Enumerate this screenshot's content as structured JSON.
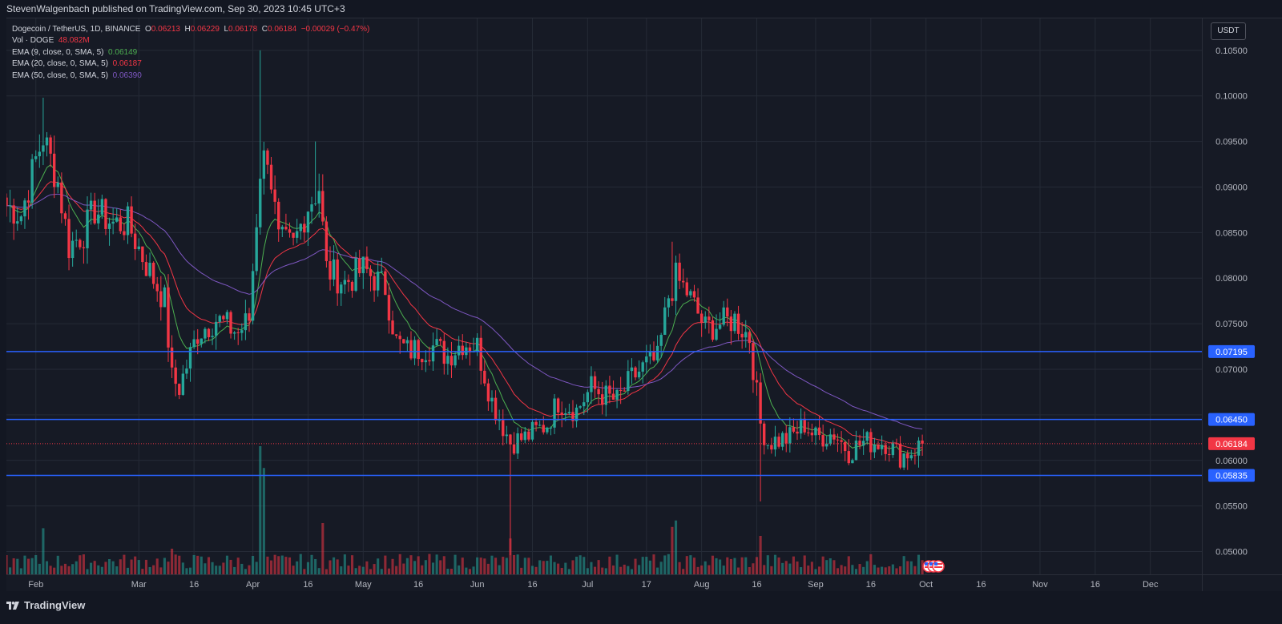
{
  "header": {
    "published_text": "StevenWalgenbach published on TradingView.com, Sep 30, 2023 10:45 UTC+3"
  },
  "legend": {
    "symbol": "Dogecoin / TetherUS, 1D, BINANCE",
    "ohlc": {
      "o_label": "O",
      "o_value": "0.06213",
      "h_label": "H",
      "h_value": "0.06229",
      "l_label": "L",
      "l_value": "0.06178",
      "c_label": "C",
      "c_value": "0.06184",
      "change": "−0.00029 (−0.47%)"
    },
    "volume": {
      "label": "Vol · DOGE",
      "value": "48.082M"
    },
    "ema9": {
      "label": "EMA (9, close, 0, SMA, 5)",
      "value": "0.06149",
      "color": "#4caf50"
    },
    "ema20": {
      "label": "EMA (20, close, 0, SMA, 5)",
      "value": "0.06187",
      "color": "#f23645"
    },
    "ema50": {
      "label": "EMA (50, close, 0, SMA, 5)",
      "value": "0.06390",
      "color": "#7e57c2"
    }
  },
  "toolbar": {
    "unit_label": "USDT"
  },
  "footer": {
    "logo_text": "TradingView"
  },
  "colors": {
    "background": "#161a25",
    "up": "#26a69a",
    "down": "#f23645",
    "levels": "#2962ff",
    "grid": "#252a36",
    "axis_text": "#b2b5be"
  },
  "icons": {
    "logo": "tradingview-logo-icon",
    "events": "us-flag-event-icon"
  },
  "chart_data": {
    "type": "candlestick",
    "title": "Dogecoin / TetherUS, 1D, BINANCE",
    "x_range": [
      "2023-01-24",
      "2023-12-15"
    ],
    "ylim": [
      0.0475,
      0.1085
    ],
    "y_ticks": [
      "0.05000",
      "0.05500",
      "0.06000",
      "0.06500",
      "0.07000",
      "0.07500",
      "0.08000",
      "0.08500",
      "0.09000",
      "0.09500",
      "0.10000",
      "0.10500"
    ],
    "x_ticks": [
      {
        "date": "2023-02-01",
        "label": "Feb"
      },
      {
        "date": "2023-03-01",
        "label": "Mar"
      },
      {
        "date": "2023-03-16",
        "label": "16"
      },
      {
        "date": "2023-04-01",
        "label": "Apr"
      },
      {
        "date": "2023-04-16",
        "label": "16"
      },
      {
        "date": "2023-05-01",
        "label": "May"
      },
      {
        "date": "2023-05-16",
        "label": "16"
      },
      {
        "date": "2023-06-01",
        "label": "Jun"
      },
      {
        "date": "2023-06-16",
        "label": "16"
      },
      {
        "date": "2023-07-01",
        "label": "Jul"
      },
      {
        "date": "2023-07-17",
        "label": "17"
      },
      {
        "date": "2023-08-01",
        "label": "Aug"
      },
      {
        "date": "2023-08-16",
        "label": "16"
      },
      {
        "date": "2023-09-01",
        "label": "Sep"
      },
      {
        "date": "2023-09-16",
        "label": "16"
      },
      {
        "date": "2023-10-01",
        "label": "Oct"
      },
      {
        "date": "2023-10-16",
        "label": "16"
      },
      {
        "date": "2023-11-01",
        "label": "Nov"
      },
      {
        "date": "2023-11-16",
        "label": "16"
      },
      {
        "date": "2023-12-01",
        "label": "Dec"
      }
    ],
    "horizontal_levels": [
      {
        "value": 0.07195,
        "label": "0.07195"
      },
      {
        "value": 0.0645,
        "label": "0.06450"
      },
      {
        "value": 0.05835,
        "label": "0.05835"
      }
    ],
    "last_price": {
      "value": 0.06184,
      "label": "0.06184"
    },
    "anchors": [
      [
        "2023-01-24",
        0.088
      ],
      [
        "2023-01-28",
        0.087
      ],
      [
        "2023-02-01",
        0.093
      ],
      [
        "2023-02-03",
        0.0955
      ],
      [
        "2023-02-07",
        0.0905
      ],
      [
        "2023-02-10",
        0.0835
      ],
      [
        "2023-02-14",
        0.085
      ],
      [
        "2023-02-17",
        0.0875
      ],
      [
        "2023-02-22",
        0.086
      ],
      [
        "2023-02-26",
        0.086
      ],
      [
        "2023-03-03",
        0.0815
      ],
      [
        "2023-03-08",
        0.0775
      ],
      [
        "2023-03-10",
        0.069
      ],
      [
        "2023-03-12",
        0.068
      ],
      [
        "2023-03-17",
        0.074
      ],
      [
        "2023-03-22",
        0.0755
      ],
      [
        "2023-03-28",
        0.074
      ],
      [
        "2023-03-31",
        0.0755
      ],
      [
        "2023-04-03",
        0.092
      ],
      [
        "2023-04-05",
        0.094
      ],
      [
        "2023-04-08",
        0.084
      ],
      [
        "2023-04-12",
        0.0835
      ],
      [
        "2023-04-16",
        0.088
      ],
      [
        "2023-04-19",
        0.09
      ],
      [
        "2023-04-21",
        0.081
      ],
      [
        "2023-04-26",
        0.0795
      ],
      [
        "2023-05-01",
        0.081
      ],
      [
        "2023-05-07",
        0.079
      ],
      [
        "2023-05-10",
        0.073
      ],
      [
        "2023-05-13",
        0.072
      ],
      [
        "2023-05-20",
        0.0725
      ],
      [
        "2023-05-24",
        0.0715
      ],
      [
        "2023-05-28",
        0.073
      ],
      [
        "2023-06-01",
        0.0725
      ],
      [
        "2023-06-05",
        0.0665
      ],
      [
        "2023-06-10",
        0.062
      ],
      [
        "2023-06-14",
        0.0625
      ],
      [
        "2023-06-20",
        0.064
      ],
      [
        "2023-06-23",
        0.0665
      ],
      [
        "2023-06-28",
        0.0655
      ],
      [
        "2023-07-02",
        0.068
      ],
      [
        "2023-07-06",
        0.067
      ],
      [
        "2023-07-09",
        0.0665
      ],
      [
        "2023-07-13",
        0.069
      ],
      [
        "2023-07-17",
        0.0705
      ],
      [
        "2023-07-20",
        0.071
      ],
      [
        "2023-07-23",
        0.078
      ],
      [
        "2023-07-25",
        0.08
      ],
      [
        "2023-07-28",
        0.0785
      ],
      [
        "2023-08-02",
        0.0745
      ],
      [
        "2023-08-06",
        0.075
      ],
      [
        "2023-08-10",
        0.0755
      ],
      [
        "2023-08-14",
        0.0735
      ],
      [
        "2023-08-17",
        0.064
      ],
      [
        "2023-08-19",
        0.062
      ],
      [
        "2023-08-25",
        0.0625
      ],
      [
        "2023-08-29",
        0.064
      ],
      [
        "2023-09-01",
        0.0625
      ],
      [
        "2023-09-06",
        0.063
      ],
      [
        "2023-09-10",
        0.061
      ],
      [
        "2023-09-14",
        0.062
      ],
      [
        "2023-09-20",
        0.062
      ],
      [
        "2023-09-24",
        0.0605
      ],
      [
        "2023-09-27",
        0.061
      ],
      [
        "2023-09-30",
        0.0618
      ]
    ],
    "spikes": [
      {
        "date": "2023-04-03",
        "high": 0.105
      },
      {
        "date": "2023-02-03",
        "high": 0.0998
      },
      {
        "date": "2023-06-10",
        "low": 0.0496
      },
      {
        "date": "2023-08-17",
        "low": 0.0555
      },
      {
        "date": "2023-07-24",
        "high": 0.084
      },
      {
        "date": "2023-04-18",
        "high": 0.095
      }
    ],
    "volume": {
      "peaks": [
        {
          "date": "2023-04-03",
          "value": 1.0
        },
        {
          "date": "2023-04-04",
          "value": 0.83
        },
        {
          "date": "2023-06-10",
          "value": 0.28
        },
        {
          "date": "2023-07-25",
          "value": 0.42
        },
        {
          "date": "2023-07-24",
          "value": 0.37
        },
        {
          "date": "2023-02-03",
          "value": 0.36
        },
        {
          "date": "2023-04-20",
          "value": 0.4
        },
        {
          "date": "2023-08-17",
          "value": 0.3
        },
        {
          "date": "2023-03-10",
          "value": 0.2
        }
      ]
    }
  }
}
